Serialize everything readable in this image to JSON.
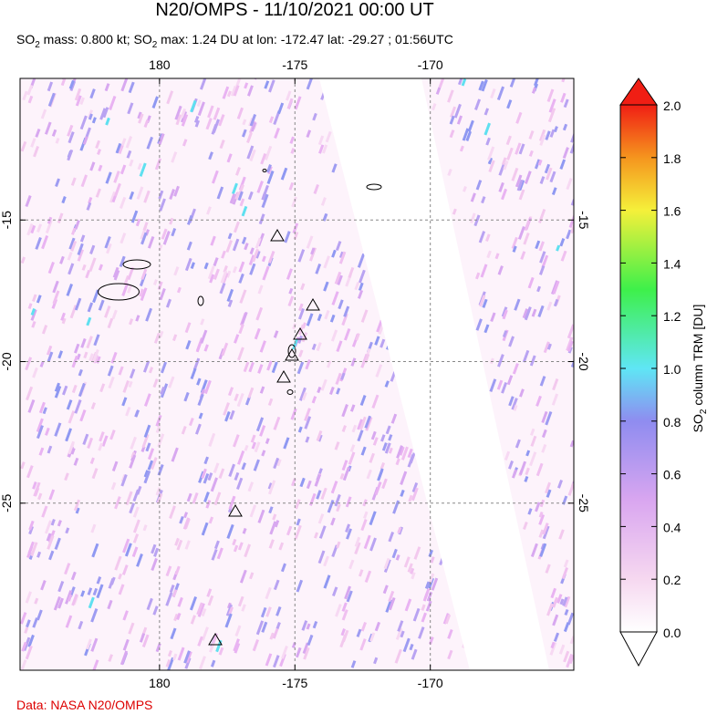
{
  "title": "N20/OMPS - 11/10/2021 00:00 UT",
  "subtitle": [
    "SO",
    "2",
    " mass: 0.800 kt; SO",
    "2",
    " max: 1.24 DU at lon: -172.47 lat: -29.27 ; 01:56UTC"
  ],
  "map": {
    "xlim": [
      174.85,
      195.3
    ],
    "ylim": [
      -30.9,
      -10
    ],
    "xticks": [
      {
        "value": 180,
        "label": "180"
      },
      {
        "value": 185,
        "label": "-175"
      },
      {
        "value": 190,
        "label": "-170"
      }
    ],
    "yticks": [
      -15,
      -20,
      -25
    ]
  },
  "colorbar": {
    "label": [
      "SO",
      "2",
      " column TRM [DU]"
    ],
    "lim": [
      0,
      2
    ],
    "ticks": [
      {
        "value": 0,
        "label": "0.0"
      },
      {
        "value": 0.2,
        "label": "0.2"
      },
      {
        "value": 0.4,
        "label": "0.4"
      },
      {
        "value": 0.6,
        "label": "0.6"
      },
      {
        "value": 0.8,
        "label": "0.8"
      },
      {
        "value": 1.0,
        "label": "1.0"
      },
      {
        "value": 1.2,
        "label": "1.2"
      },
      {
        "value": 1.4,
        "label": "1.4"
      },
      {
        "value": 1.6,
        "label": "1.6"
      },
      {
        "value": 1.8,
        "label": "1.8"
      },
      {
        "value": 2.0,
        "label": "2.0"
      }
    ]
  },
  "footer": "Data: NASA N20/OMPS"
}
